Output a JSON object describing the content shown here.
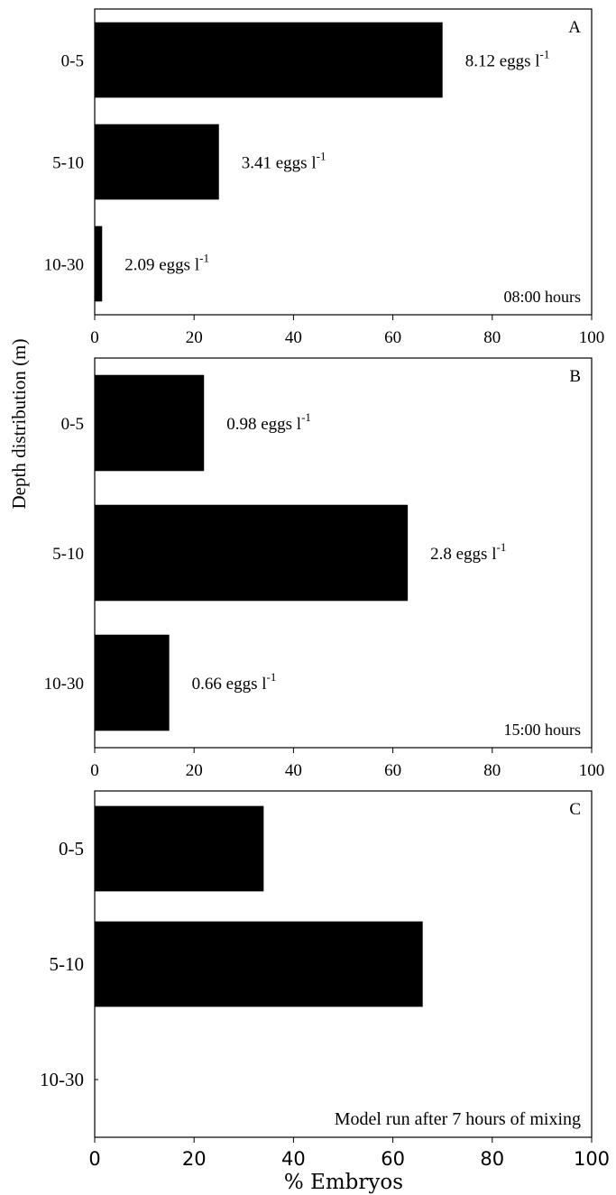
{
  "chart_data": {
    "type": "bar",
    "orientation": "horizontal",
    "ylabel": "Depth distribution (m)",
    "xlabel": "% Embryos",
    "xlim": [
      0,
      100
    ],
    "xticks": [
      "0",
      "20",
      "40",
      "60",
      "80",
      "100"
    ],
    "categories": [
      "0-5",
      "5-10",
      "10-30"
    ],
    "grid": false,
    "panels": [
      {
        "id": "A",
        "letter": "A",
        "time_label": "08:00 hours",
        "values": [
          70,
          25,
          1.5
        ],
        "bar_labels": [
          {
            "text": "8.12 eggs l",
            "sup": "-1"
          },
          {
            "text": "3.41 eggs l",
            "sup": "-1"
          },
          {
            "text": "2.09 eggs l",
            "sup": "-1"
          }
        ]
      },
      {
        "id": "B",
        "letter": "B",
        "time_label": "15:00 hours",
        "values": [
          22,
          63,
          15
        ],
        "bar_labels": [
          {
            "text": "0.98 eggs l",
            "sup": "-1"
          },
          {
            "text": "2.8 eggs l",
            "sup": "-1"
          },
          {
            "text": "0.66 eggs l",
            "sup": "-1"
          }
        ]
      },
      {
        "id": "C",
        "letter": "C",
        "time_label": "Model run after 7 hours of mixing",
        "values": [
          34,
          66,
          0
        ],
        "bar_labels": [
          null,
          null,
          null
        ]
      }
    ]
  }
}
